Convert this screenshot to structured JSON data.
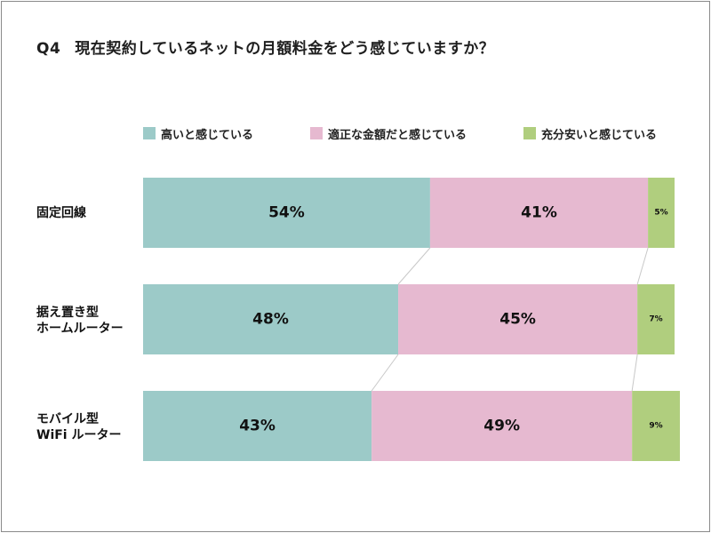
{
  "title": {
    "number": "Q4",
    "text": "現在契約しているネットの月額料金をどう感じていますか？"
  },
  "colors": {
    "series": [
      "#9ccac8",
      "#e6b9d0",
      "#b0ce7e"
    ],
    "connector": "#c8c8c8"
  },
  "chart_data": {
    "type": "bar",
    "orientation": "horizontal",
    "stacked": true,
    "percent": true,
    "xlim": [
      0,
      100
    ],
    "legend_position": "top",
    "categories": [
      "固定回線",
      "据え置き型\nホームルーター",
      "モバイル型\nWiFi ルーター"
    ],
    "series": [
      {
        "name": "高いと感じている",
        "values": [
          54,
          48,
          43
        ],
        "labels": [
          "54%",
          "48%",
          "43%"
        ]
      },
      {
        "name": "適正な金額だと感じている",
        "values": [
          41,
          45,
          49
        ],
        "labels": [
          "41%",
          "45%",
          "49%"
        ]
      },
      {
        "name": "充分安いと感じている",
        "values": [
          5,
          7,
          9
        ],
        "labels": [
          "5%",
          "7%",
          "9%"
        ]
      }
    ]
  }
}
